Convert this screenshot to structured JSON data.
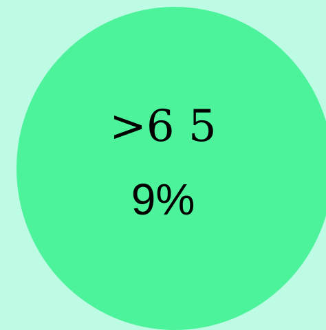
{
  "chart_data": {
    "type": "pie",
    "categories": [
      ">6 5"
    ],
    "values": [
      9
    ],
    "value_labels": [
      "9%"
    ],
    "colors": {
      "background": "#bdfbe5",
      "slice": "#4cf39b",
      "text": "#000000"
    }
  }
}
